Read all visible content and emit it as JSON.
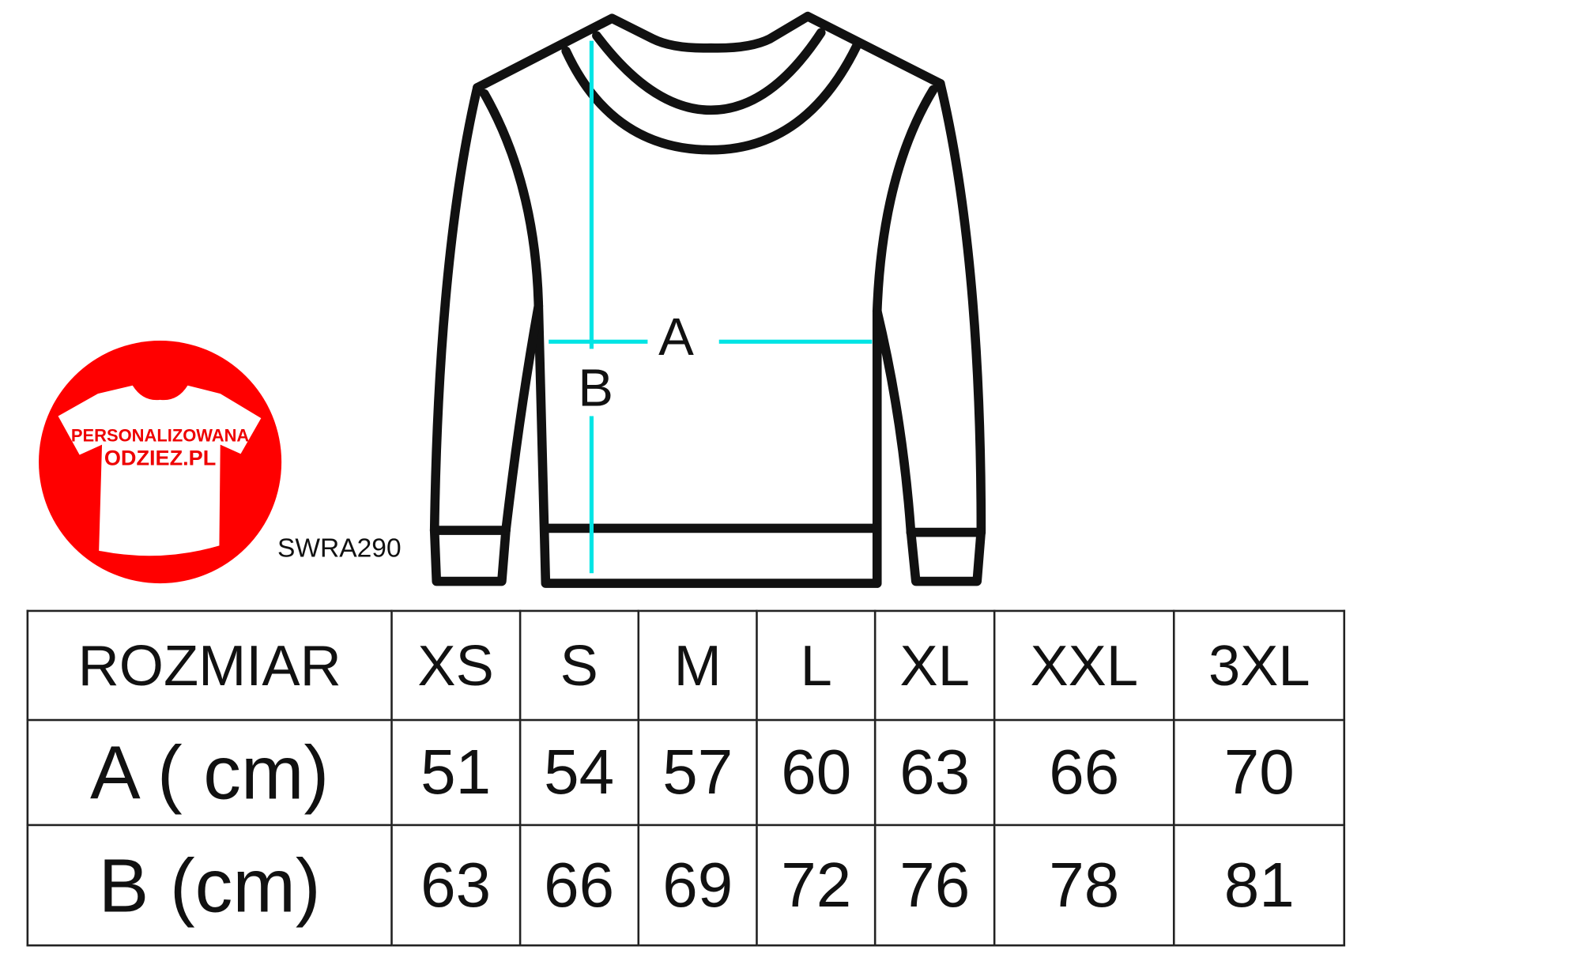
{
  "logo": {
    "line1": "PERSONALIZOWANA",
    "line2": "ODZIEZ.PL",
    "color": "#ff0000"
  },
  "product_code": "SWRA290",
  "diagram": {
    "label_a": "A",
    "label_b": "B",
    "measure_color": "#00e5e5"
  },
  "table": {
    "header": [
      "ROZMIAR",
      "XS",
      "S",
      "M",
      "L",
      "XL",
      "XXL",
      "3XL"
    ],
    "rows": [
      [
        "A ( cm)",
        "51",
        "54",
        "57",
        "60",
        "63",
        "66",
        "70"
      ],
      [
        "B (cm)",
        "63",
        "66",
        "69",
        "72",
        "76",
        "78",
        "81"
      ]
    ]
  }
}
